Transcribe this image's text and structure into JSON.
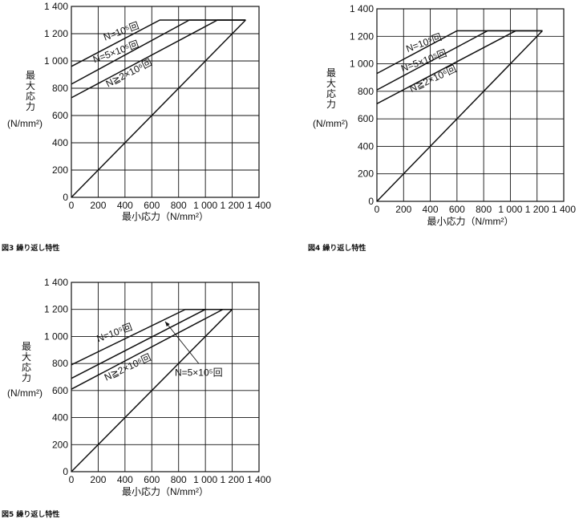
{
  "captions": [
    "図3 繰り返し特性",
    "図4 繰り返し特性",
    "図5 繰り返し特性"
  ],
  "chart_data": [
    {
      "type": "line",
      "title": "",
      "xlabel": "最小応力（N/mm²）",
      "ylabel": [
        "最",
        "大",
        "応",
        "力"
      ],
      "yunit": "(N/mm²)",
      "xlim": [
        0,
        1400
      ],
      "ylim": [
        0,
        1400
      ],
      "xticks": [
        "0",
        "200",
        "400",
        "600",
        "800",
        "1 000",
        "1 200",
        "1 400"
      ],
      "yticks": [
        "0",
        "200",
        "400",
        "600",
        "800",
        "1 000",
        "1 200",
        "1 400"
      ],
      "grid": true,
      "series": [
        {
          "name": "N=10⁵回",
          "x": [
            0,
            660,
            1300
          ],
          "y": [
            960,
            1300,
            1300
          ]
        },
        {
          "name": "N=5×10⁵回",
          "x": [
            0,
            880,
            1300
          ],
          "y": [
            830,
            1300,
            1300
          ]
        },
        {
          "name": "N≧2×10⁶回",
          "x": [
            0,
            1090,
            1300
          ],
          "y": [
            730,
            1300,
            1300
          ]
        },
        {
          "name": "",
          "x": [
            0,
            1300
          ],
          "y": [
            0,
            1300
          ]
        }
      ],
      "annotations": [
        {
          "text": "N=10⁵回",
          "x": 380,
          "y": 1195,
          "angle": -20
        },
        {
          "text": "N=5×10⁵回",
          "x": 340,
          "y": 1045,
          "angle": -20
        },
        {
          "text": "N≧2×10⁶回",
          "x": 440,
          "y": 890,
          "angle": -27
        }
      ]
    },
    {
      "type": "line",
      "title": "",
      "xlabel": "最小応力（N/mm²）",
      "ylabel": [
        "最",
        "大",
        "応",
        "力"
      ],
      "yunit": "(N/mm²)",
      "xlim": [
        0,
        1400
      ],
      "ylim": [
        0,
        1400
      ],
      "xticks": [
        "0",
        "200",
        "400",
        "600",
        "800",
        "1 000",
        "1 200",
        "1 400"
      ],
      "yticks": [
        "0",
        "200",
        "400",
        "600",
        "800",
        "1 000",
        "1 200",
        "1 400"
      ],
      "grid": true,
      "series": [
        {
          "name": "N=10⁵回",
          "x": [
            0,
            600,
            1240
          ],
          "y": [
            930,
            1240,
            1240
          ]
        },
        {
          "name": "N=5×10⁵回",
          "x": [
            0,
            830,
            1240
          ],
          "y": [
            810,
            1240,
            1240
          ]
        },
        {
          "name": "N≧2×10⁶回",
          "x": [
            0,
            1040,
            1240
          ],
          "y": [
            710,
            1240,
            1240
          ]
        },
        {
          "name": "",
          "x": [
            0,
            1240
          ],
          "y": [
            0,
            1240
          ]
        }
      ],
      "annotations": [
        {
          "text": "N=10⁵回",
          "x": 360,
          "y": 1130,
          "angle": -20
        },
        {
          "text": "N=5×10⁵回",
          "x": 360,
          "y": 1000,
          "angle": -20
        },
        {
          "text": "N≧2×10⁶回",
          "x": 430,
          "y": 870,
          "angle": -25
        }
      ]
    },
    {
      "type": "line",
      "title": "",
      "xlabel": "最小応力（N/mm²）",
      "ylabel": [
        "最",
        "大",
        "応",
        "力"
      ],
      "yunit": "(N/mm²)",
      "xlim": [
        0,
        1400
      ],
      "ylim": [
        0,
        1400
      ],
      "xticks": [
        "0",
        "200",
        "400",
        "600",
        "800",
        "1 000",
        "1 200",
        "1 400"
      ],
      "yticks": [
        "0",
        "200",
        "400",
        "600",
        "800",
        "1 000",
        "1 200",
        "1 400"
      ],
      "grid": true,
      "series": [
        {
          "name": "N=10⁵回",
          "x": [
            0,
            850,
            1200
          ],
          "y": [
            790,
            1200,
            1200
          ]
        },
        {
          "name": "N=5×10⁵回",
          "x": [
            0,
            1000,
            1200
          ],
          "y": [
            690,
            1200,
            1200
          ]
        },
        {
          "name": "N≧2×10⁶回",
          "x": [
            0,
            1130,
            1200
          ],
          "y": [
            610,
            1200,
            1200
          ]
        },
        {
          "name": "",
          "x": [
            0,
            1200
          ],
          "y": [
            0,
            1200
          ]
        }
      ],
      "annotations": [
        {
          "text": "N=10⁵回",
          "x": 330,
          "y": 1005,
          "angle": -20
        },
        {
          "text": "N≧2×10⁶回",
          "x": 430,
          "y": 750,
          "angle": -25
        },
        {
          "text": "N=5×10⁵回",
          "x": 950,
          "y": 710,
          "angle": 0
        }
      ],
      "arrow": {
        "from": [
          950,
          800
        ],
        "to": [
          700,
          1110
        ]
      }
    }
  ]
}
